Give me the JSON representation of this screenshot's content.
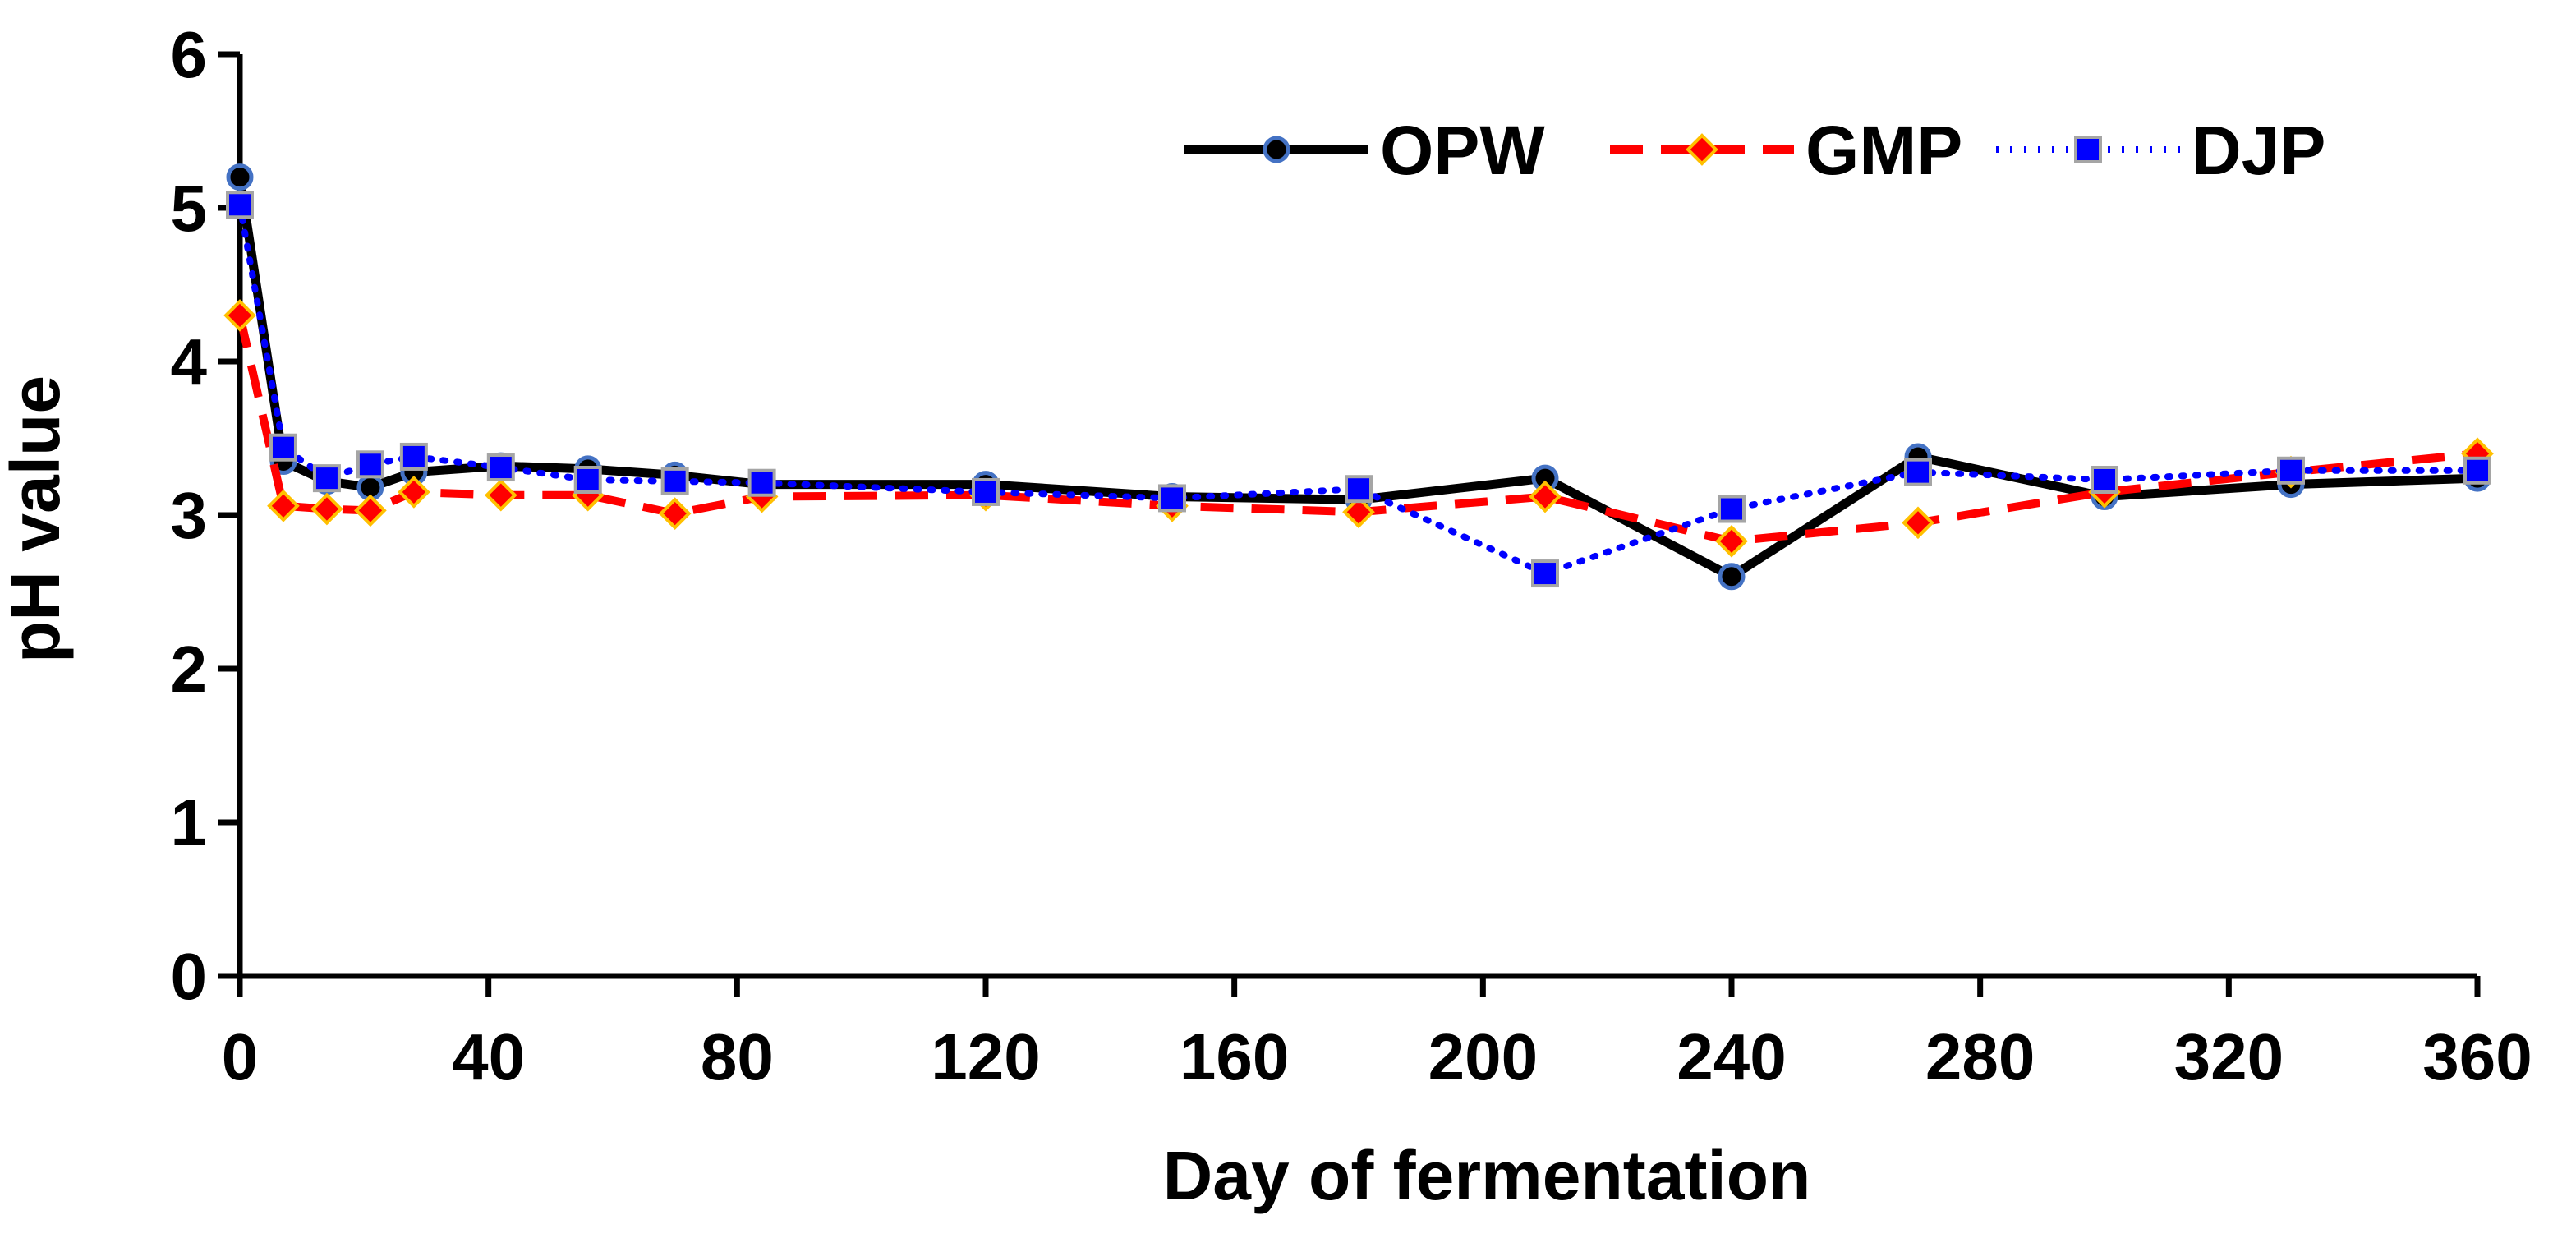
{
  "chart_data": {
    "type": "line",
    "title": "",
    "xlabel": "Day of fermentation",
    "ylabel": "pH value",
    "xlim": [
      0,
      360
    ],
    "ylim": [
      0,
      6
    ],
    "x_ticks": [
      "0",
      "40",
      "80",
      "120",
      "160",
      "200",
      "240",
      "280",
      "320",
      "360"
    ],
    "y_ticks": [
      "0",
      "1",
      "2",
      "3",
      "4",
      "5",
      "6"
    ],
    "legend_position": "top-right",
    "grid": false,
    "x": [
      0,
      7,
      14,
      21,
      28,
      42,
      56,
      70,
      84,
      120,
      150,
      180,
      210,
      240,
      270,
      300,
      330,
      360
    ],
    "series": [
      {
        "name": "OPW",
        "color": "#000000",
        "marker": "circle",
        "marker_fill": "#000000",
        "marker_stroke": "#4472c4",
        "line_style": "solid",
        "values": [
          5.2,
          3.35,
          3.22,
          3.18,
          3.28,
          3.32,
          3.3,
          3.26,
          3.2,
          3.2,
          3.12,
          3.1,
          3.24,
          2.6,
          3.38,
          3.12,
          3.2,
          3.24
        ]
      },
      {
        "name": "GMP",
        "color": "#ff0000",
        "marker": "diamond",
        "marker_fill": "#ff0000",
        "marker_stroke": "#ffc000",
        "line_style": "dashed",
        "values": [
          4.3,
          3.06,
          3.04,
          3.03,
          3.15,
          3.13,
          3.13,
          3.01,
          3.12,
          3.13,
          3.06,
          3.02,
          3.12,
          2.83,
          2.95,
          3.15,
          3.28,
          3.4
        ]
      },
      {
        "name": "DJP",
        "color": "#0000ff",
        "marker": "square",
        "marker_fill": "#0000ff",
        "marker_stroke": "#a5a5a5",
        "line_style": "dotted",
        "values": [
          5.02,
          3.44,
          3.24,
          3.33,
          3.38,
          3.31,
          3.23,
          3.22,
          3.21,
          3.15,
          3.11,
          3.17,
          2.62,
          3.04,
          3.28,
          3.23,
          3.29,
          3.29
        ]
      }
    ]
  }
}
